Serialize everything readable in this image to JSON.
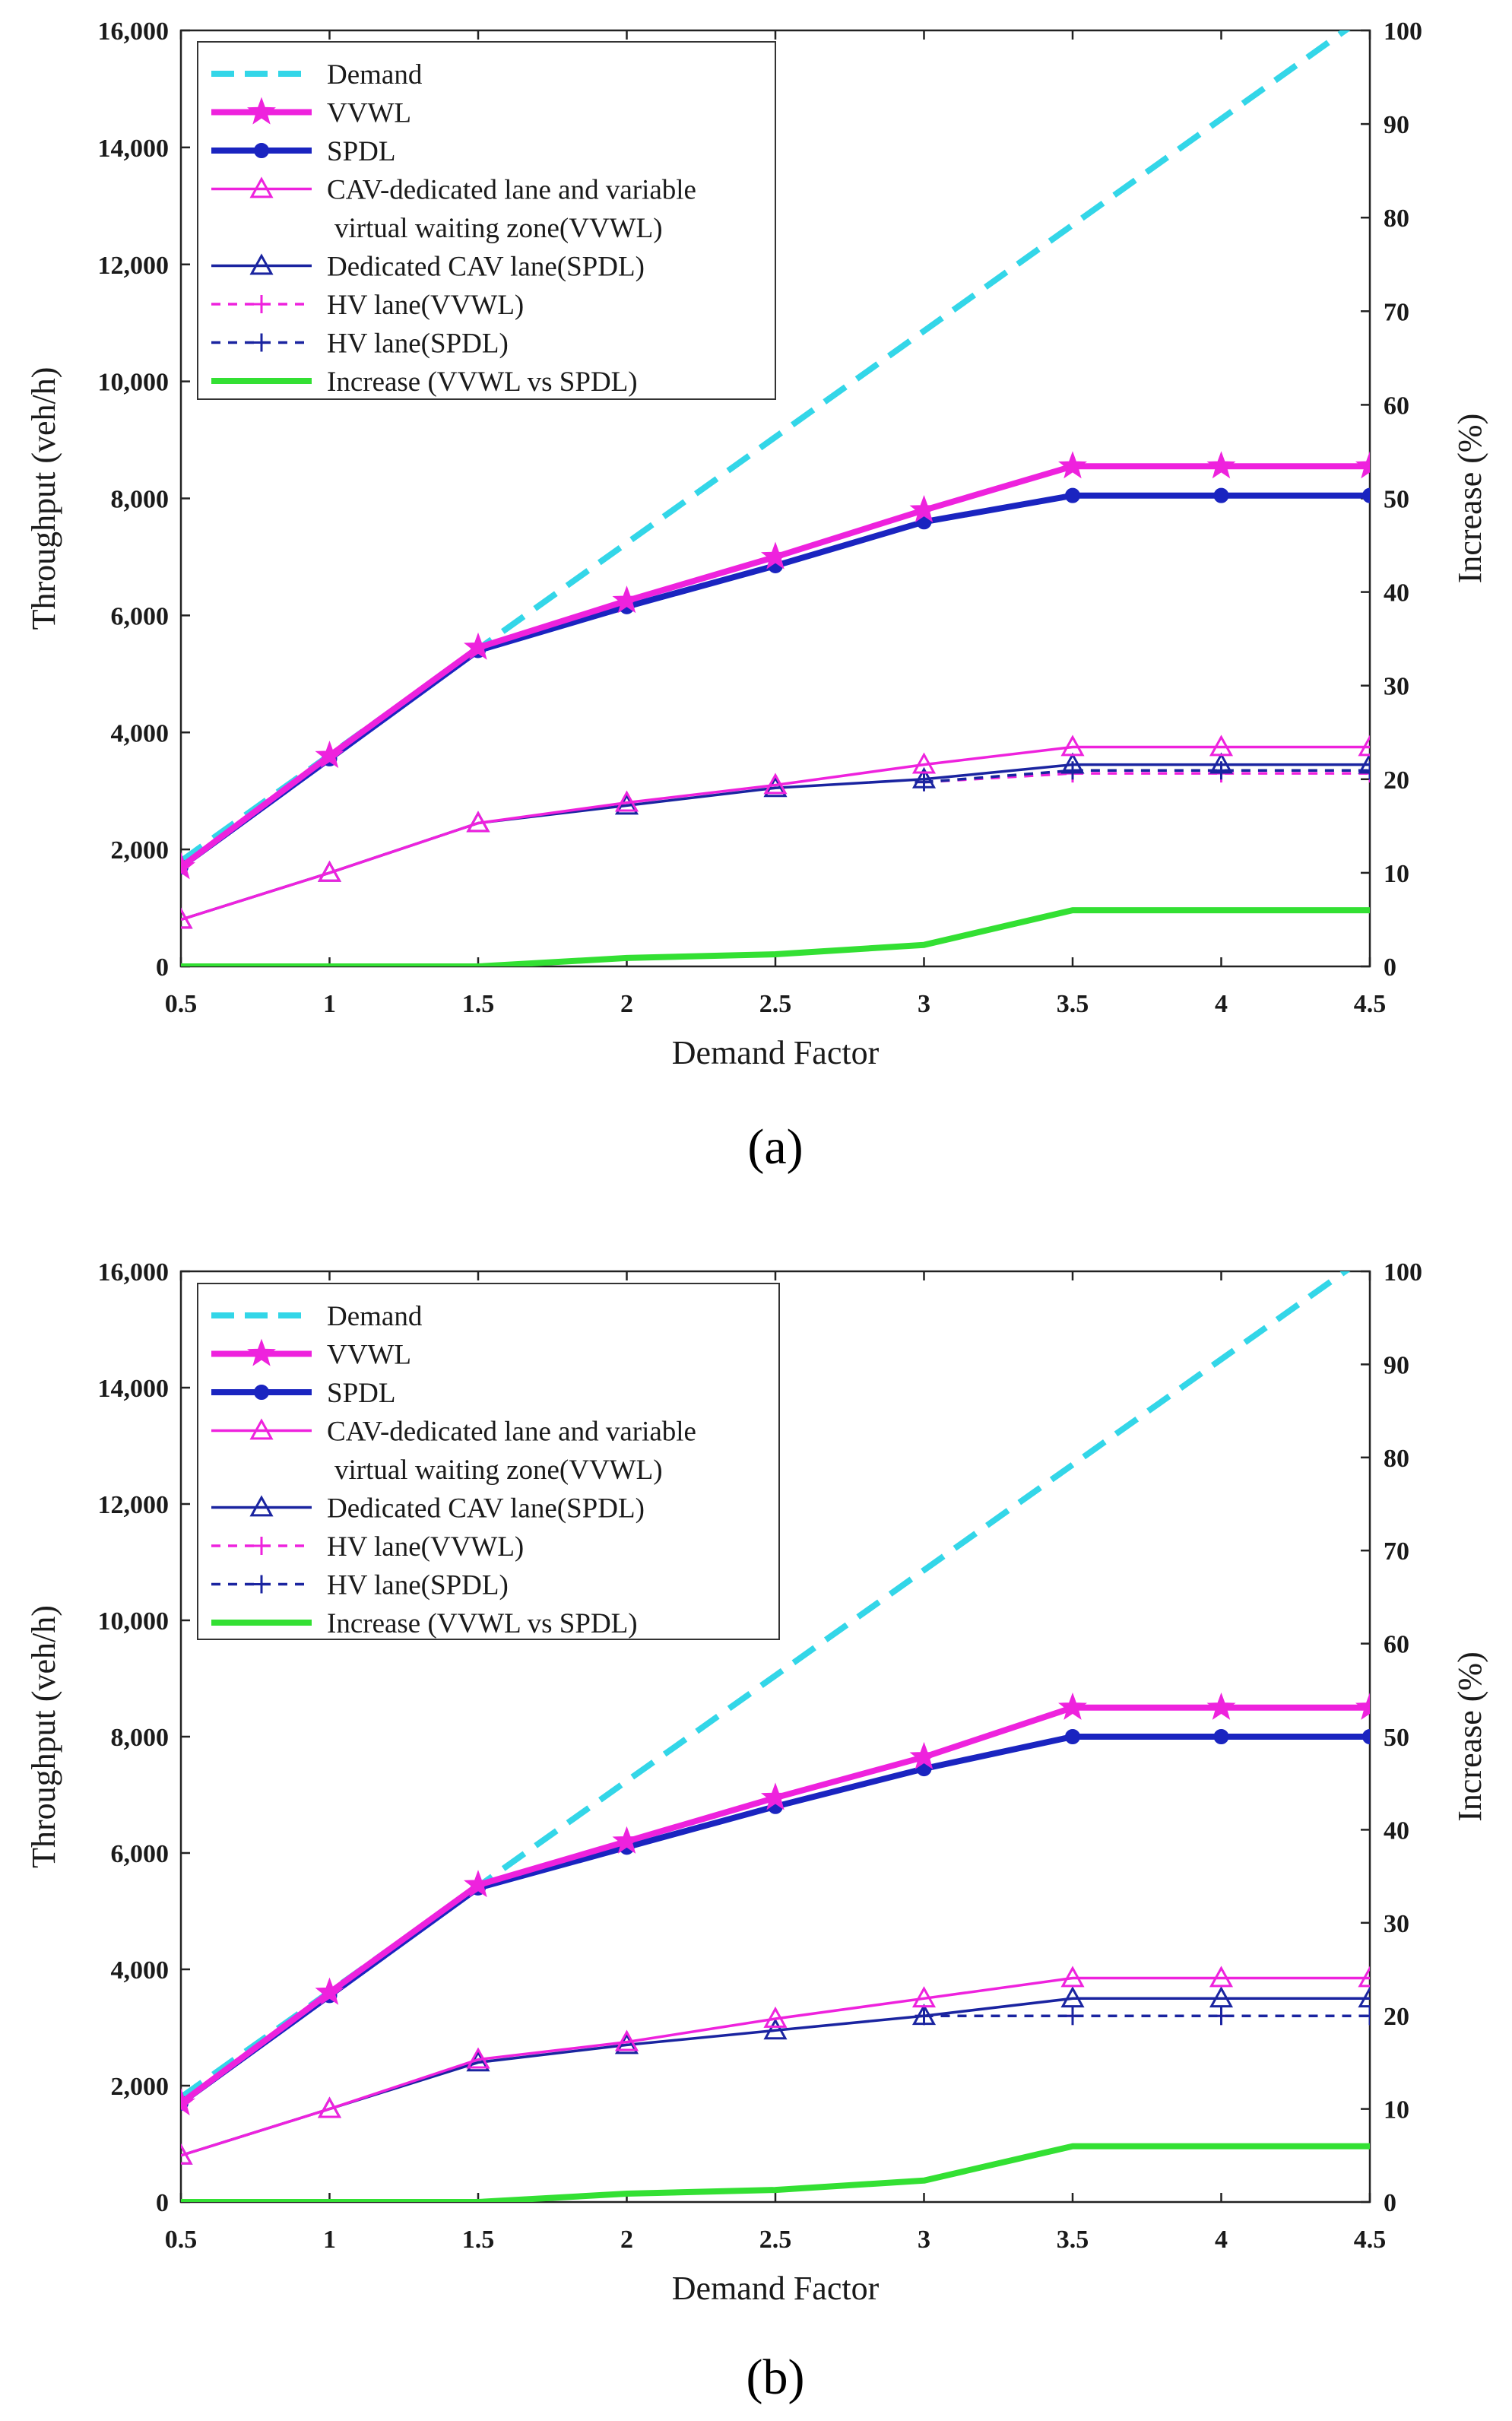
{
  "chart_data": [
    {
      "type": "line",
      "panel_label": "(a)",
      "xlabel": "Demand Factor",
      "ylabel": "Throughput (veh/h)",
      "y2label": "Increase (%)",
      "x": [
        0.5,
        1,
        1.5,
        2,
        2.5,
        3,
        3.5,
        4,
        4.5
      ],
      "x_tick_labels": [
        "0.5",
        "1",
        "1.5",
        "2",
        "2.5",
        "3",
        "3.5",
        "4",
        "4.5"
      ],
      "ylim": [
        0,
        16000
      ],
      "y_tick_labels": [
        "0",
        "2,000",
        "4,000",
        "6,000",
        "8,000",
        "10,000",
        "12,000",
        "14,000",
        "16,000"
      ],
      "y2lim": [
        0,
        100
      ],
      "y2_tick_labels": [
        "0",
        "10",
        "20",
        "30",
        "40",
        "50",
        "60",
        "70",
        "80",
        "90",
        "100"
      ],
      "legend_position": "top-left",
      "series": [
        {
          "name": "Demand",
          "axis": "left",
          "color": "#33d6e8",
          "style": "dashed",
          "marker": "none",
          "width": "thick",
          "x": [
            0.5,
            4.5
          ],
          "values": [
            1800,
            16300
          ]
        },
        {
          "name": "VVWL",
          "axis": "left",
          "color": "#ee22dd",
          "style": "solid",
          "marker": "star",
          "width": "thick",
          "values": [
            1700,
            3600,
            5450,
            6250,
            7000,
            7800,
            8550,
            8550,
            8550
          ]
        },
        {
          "name": "SPDL",
          "axis": "left",
          "color": "#1a24c0",
          "style": "solid",
          "marker": "dot",
          "width": "thick",
          "values": [
            1700,
            3550,
            5400,
            6150,
            6850,
            7600,
            8050,
            8050,
            8050
          ]
        },
        {
          "name_lines": [
            "CAV-dedicated lane and variable",
            "virtual waiting zone(VVWL)"
          ],
          "name": "CAV-dedicated lane and variable virtual waiting zone(VVWL)",
          "axis": "left",
          "color": "#ee22dd",
          "style": "solid",
          "marker": "triangle",
          "width": "thin",
          "values": [
            800,
            1600,
            2450,
            2800,
            3100,
            3450,
            3750,
            3750,
            3750
          ]
        },
        {
          "name": "Dedicated CAV lane(SPDL)",
          "axis": "left",
          "color": "#1a24a0",
          "style": "solid",
          "marker": "triangle",
          "width": "thin",
          "values": [
            800,
            1600,
            2450,
            2750,
            3050,
            3200,
            3450,
            3450,
            3450
          ]
        },
        {
          "name": "HV lane(VVWL)",
          "axis": "left",
          "color": "#ee22dd",
          "style": "dotted",
          "marker": "plus",
          "width": "thin",
          "x": [
            3,
            3.5,
            4,
            4.5
          ],
          "values": [
            3150,
            3300,
            3300,
            3300
          ]
        },
        {
          "name": "HV lane(SPDL)",
          "axis": "left",
          "color": "#1a24a0",
          "style": "dotted",
          "marker": "plus",
          "width": "thin",
          "x": [
            3,
            3.5,
            4,
            4.5
          ],
          "values": [
            3150,
            3350,
            3350,
            3350
          ]
        },
        {
          "name": "Increase (VVWL vs SPDL)",
          "axis": "right",
          "color": "#33e033",
          "style": "solid",
          "marker": "none",
          "width": "thick",
          "values": [
            0,
            0,
            0,
            0.9,
            1.3,
            2.3,
            6.0,
            6.0,
            6.0
          ]
        }
      ]
    },
    {
      "type": "line",
      "panel_label": "(b)",
      "xlabel": "Demand Factor",
      "ylabel": "Throughput (veh/h)",
      "y2label": "Increase (%)",
      "x": [
        0.5,
        1,
        1.5,
        2,
        2.5,
        3,
        3.5,
        4,
        4.5
      ],
      "x_tick_labels": [
        "0.5",
        "1",
        "1.5",
        "2",
        "2.5",
        "3",
        "3.5",
        "4",
        "4.5"
      ],
      "ylim": [
        0,
        16000
      ],
      "y_tick_labels": [
        "0",
        "2,000",
        "4,000",
        "6,000",
        "8,000",
        "10,000",
        "12,000",
        "14,000",
        "16,000"
      ],
      "y2lim": [
        0,
        100
      ],
      "y2_tick_labels": [
        "0",
        "10",
        "20",
        "30",
        "40",
        "50",
        "60",
        "70",
        "80",
        "90",
        "100"
      ],
      "legend_position": "top-left",
      "series": [
        {
          "name": "Demand",
          "axis": "left",
          "color": "#33d6e8",
          "style": "dashed",
          "marker": "none",
          "width": "thick",
          "x": [
            0.5,
            4.5
          ],
          "values": [
            1800,
            16300
          ]
        },
        {
          "name": "VVWL",
          "axis": "left",
          "color": "#ee22dd",
          "style": "solid",
          "marker": "star",
          "width": "thick",
          "values": [
            1700,
            3600,
            5450,
            6200,
            6950,
            7650,
            8500,
            8500,
            8500
          ]
        },
        {
          "name": "SPDL",
          "axis": "left",
          "color": "#1a24c0",
          "style": "solid",
          "marker": "dot",
          "width": "thick",
          "values": [
            1700,
            3550,
            5400,
            6100,
            6800,
            7450,
            8000,
            8000,
            8000
          ]
        },
        {
          "name_lines": [
            "CAV-dedicated lane and variable",
            "virtual waiting zone(VVWL)"
          ],
          "name": "CAV-dedicated lane and variable virtual waiting zone(VVWL)",
          "axis": "left",
          "color": "#ee22dd",
          "style": "solid",
          "marker": "triangle",
          "width": "thin",
          "values": [
            800,
            1600,
            2450,
            2750,
            3150,
            3500,
            3850,
            3850,
            3850
          ]
        },
        {
          "name": "Dedicated CAV lane(SPDL)",
          "axis": "left",
          "color": "#1a24a0",
          "style": "solid",
          "marker": "triangle",
          "width": "thin",
          "values": [
            800,
            1600,
            2400,
            2700,
            2950,
            3200,
            3500,
            3500,
            3500
          ]
        },
        {
          "name": "HV lane(VVWL)",
          "axis": "left",
          "color": "#ee22dd",
          "style": "dotted",
          "marker": "plus",
          "width": "thin",
          "x": [
            3,
            3.5,
            4,
            4.5
          ],
          "values": [
            3200,
            3200,
            3200,
            3200
          ]
        },
        {
          "name": "HV lane(SPDL)",
          "axis": "left",
          "color": "#1a24a0",
          "style": "dotted",
          "marker": "plus",
          "width": "thin",
          "x": [
            3,
            3.5,
            4,
            4.5
          ],
          "values": [
            3200,
            3200,
            3200,
            3200
          ]
        },
        {
          "name": "Increase (VVWL vs SPDL)",
          "axis": "right",
          "color": "#33e033",
          "style": "solid",
          "marker": "none",
          "width": "thick",
          "values": [
            0,
            0,
            0,
            0.9,
            1.3,
            2.3,
            6.0,
            6.0,
            6.0
          ]
        }
      ]
    }
  ]
}
